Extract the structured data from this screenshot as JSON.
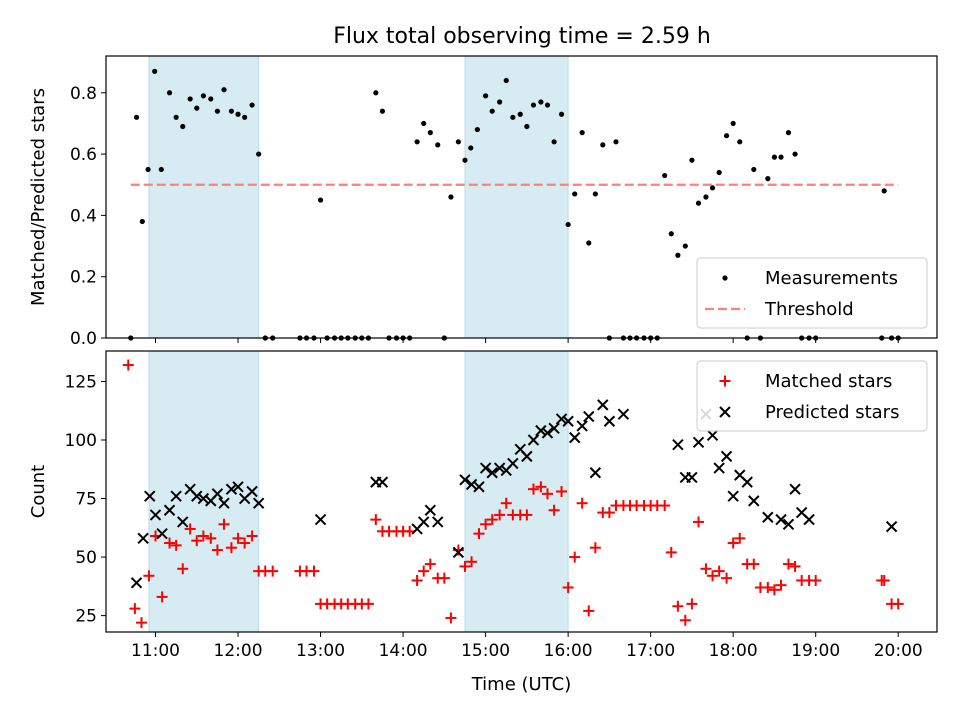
{
  "figure": {
    "title": "Flux total observing time = 2.59 h"
  },
  "colors": {
    "highlight": "#add8e6",
    "threshold": "#ff7f7f",
    "matched": "#ff0000",
    "predicted": "#000000",
    "measurement": "#000000"
  },
  "chart_data": [
    {
      "type": "scatter",
      "title": "Flux total observing time = 2.59 h",
      "xlabel": "",
      "ylabel": "Matched/Predicted stars",
      "xlim": [
        10.4,
        20.47
      ],
      "ylim": [
        0,
        0.92
      ],
      "yticks": [
        0.0,
        0.2,
        0.4,
        0.6,
        0.8
      ],
      "ytick_labels": [
        "0.0",
        "0.2",
        "0.4",
        "0.6",
        "0.8"
      ],
      "xticks": [
        11,
        12,
        13,
        14,
        15,
        16,
        17,
        18,
        19,
        20
      ],
      "highlight_spans": [
        [
          10.92,
          12.25
        ],
        [
          14.75,
          16.0
        ]
      ],
      "threshold": 0.5,
      "threshold_x": [
        10.7,
        20.0
      ],
      "legend": {
        "position": "lower right",
        "entries": [
          "Measurements",
          "Threshold"
        ]
      },
      "series": [
        {
          "name": "Measurements",
          "x": [
            10.7,
            10.77,
            10.84,
            10.91,
            10.99,
            11.07,
            11.17,
            11.25,
            11.33,
            11.42,
            11.5,
            11.58,
            11.67,
            11.75,
            11.83,
            11.92,
            12.0,
            12.08,
            12.17,
            12.25,
            12.33,
            12.42,
            12.75,
            12.83,
            12.92,
            13.0,
            13.08,
            13.17,
            13.25,
            13.33,
            13.42,
            13.5,
            13.58,
            13.67,
            13.75,
            13.83,
            13.92,
            14.0,
            14.08,
            14.17,
            14.25,
            14.33,
            14.42,
            14.5,
            14.58,
            14.67,
            14.75,
            14.82,
            14.9,
            15.0,
            15.08,
            15.17,
            15.25,
            15.33,
            15.42,
            15.5,
            15.58,
            15.67,
            15.75,
            15.83,
            15.92,
            16.0,
            16.08,
            16.17,
            16.25,
            16.33,
            16.42,
            16.5,
            16.58,
            16.67,
            16.75,
            16.83,
            16.92,
            17.0,
            17.08,
            17.17,
            17.25,
            17.33,
            17.42,
            17.5,
            17.58,
            17.67,
            17.75,
            17.83,
            17.92,
            18.0,
            18.08,
            18.17,
            18.25,
            18.33,
            18.42,
            18.5,
            18.58,
            18.67,
            18.75,
            18.83,
            18.92,
            19.0,
            19.8,
            19.83,
            19.92,
            20.0
          ],
          "y": [
            0.0,
            0.72,
            0.38,
            0.55,
            0.87,
            0.55,
            0.8,
            0.72,
            0.69,
            0.78,
            0.75,
            0.79,
            0.78,
            0.74,
            0.81,
            0.74,
            0.73,
            0.72,
            0.76,
            0.6,
            0.0,
            0.0,
            0.0,
            0.0,
            0.0,
            0.45,
            0.0,
            0.0,
            0.0,
            0.0,
            0.0,
            0.0,
            0.0,
            0.8,
            0.74,
            0.0,
            0.0,
            0.0,
            0.0,
            0.64,
            0.7,
            0.67,
            0.63,
            0.0,
            0.46,
            0.64,
            0.58,
            0.62,
            0.68,
            0.79,
            0.74,
            0.77,
            0.84,
            0.72,
            0.73,
            0.69,
            0.76,
            0.77,
            0.76,
            0.64,
            0.73,
            0.37,
            0.47,
            0.67,
            0.31,
            0.47,
            0.63,
            0.0,
            0.64,
            0.0,
            0.0,
            0.0,
            0.0,
            0.0,
            0.0,
            0.53,
            0.34,
            0.27,
            0.3,
            0.58,
            0.44,
            0.46,
            0.49,
            0.54,
            0.66,
            0.7,
            0.64,
            0.0,
            0.55,
            0.0,
            0.52,
            0.59,
            0.59,
            0.67,
            0.6,
            0.0,
            0.0,
            0.0,
            0.0,
            0.48,
            0.0,
            0.0
          ]
        }
      ]
    },
    {
      "type": "scatter",
      "xlabel": "Time (UTC)",
      "ylabel": "Count",
      "xlim": [
        10.4,
        20.47
      ],
      "ylim": [
        18,
        138
      ],
      "yticks": [
        25,
        50,
        75,
        100,
        125
      ],
      "ytick_labels": [
        "25",
        "50",
        "75",
        "100",
        "125"
      ],
      "xticks": [
        11,
        12,
        13,
        14,
        15,
        16,
        17,
        18,
        19,
        20
      ],
      "xtick_labels": [
        "11:00",
        "12:00",
        "13:00",
        "14:00",
        "15:00",
        "16:00",
        "17:00",
        "18:00",
        "19:00",
        "20:00"
      ],
      "highlight_spans": [
        [
          10.92,
          12.25
        ],
        [
          14.75,
          16.0
        ]
      ],
      "legend": {
        "position": "upper right",
        "entries": [
          "Matched stars",
          "Predicted stars"
        ]
      },
      "series": [
        {
          "name": "Matched stars",
          "marker": "+",
          "x": [
            10.67,
            10.75,
            10.83,
            10.92,
            11.0,
            11.08,
            11.17,
            11.25,
            11.33,
            11.42,
            11.5,
            11.58,
            11.67,
            11.75,
            11.83,
            11.92,
            12.0,
            12.08,
            12.17,
            12.25,
            12.33,
            12.42,
            12.75,
            12.83,
            12.92,
            13.0,
            13.08,
            13.17,
            13.25,
            13.33,
            13.42,
            13.5,
            13.58,
            13.67,
            13.75,
            13.83,
            13.92,
            14.0,
            14.08,
            14.17,
            14.25,
            14.33,
            14.42,
            14.5,
            14.58,
            14.67,
            14.75,
            14.83,
            14.92,
            15.0,
            15.08,
            15.17,
            15.25,
            15.33,
            15.42,
            15.5,
            15.58,
            15.67,
            15.75,
            15.83,
            15.92,
            16.0,
            16.08,
            16.17,
            16.25,
            16.33,
            16.42,
            16.5,
            16.58,
            16.67,
            16.75,
            16.83,
            16.92,
            17.0,
            17.08,
            17.17,
            17.25,
            17.33,
            17.42,
            17.5,
            17.58,
            17.67,
            17.75,
            17.83,
            17.92,
            18.0,
            18.08,
            18.17,
            18.25,
            18.33,
            18.42,
            18.5,
            18.58,
            18.67,
            18.75,
            18.83,
            18.92,
            19.0,
            19.8,
            19.83,
            19.92,
            20.0
          ],
          "y": [
            132,
            28,
            22,
            42,
            59,
            33,
            56,
            55,
            45,
            62,
            57,
            59,
            58,
            53,
            64,
            54,
            58,
            56,
            59,
            44,
            44,
            44,
            44,
            44,
            44,
            30,
            30,
            30,
            30,
            30,
            30,
            30,
            30,
            66,
            61,
            61,
            61,
            61,
            61,
            40,
            44,
            47,
            41,
            41,
            24,
            53,
            46,
            48,
            60,
            64,
            66,
            68,
            73,
            68,
            68,
            68,
            79,
            80,
            77,
            70,
            78,
            37,
            50,
            73,
            27,
            54,
            69,
            69,
            72,
            72,
            72,
            72,
            72,
            72,
            72,
            72,
            52,
            29,
            23,
            30,
            65,
            45,
            42,
            44,
            41,
            56,
            58,
            47,
            47,
            37,
            37,
            36,
            38,
            47,
            46,
            40,
            40,
            40,
            40,
            40,
            30,
            30
          ]
        },
        {
          "name": "Predicted stars",
          "marker": "x",
          "x": [
            10.77,
            10.85,
            10.93,
            11.0,
            11.08,
            11.17,
            11.25,
            11.33,
            11.42,
            11.5,
            11.58,
            11.67,
            11.75,
            11.83,
            11.92,
            12.0,
            12.08,
            12.17,
            12.25,
            13.0,
            13.67,
            13.75,
            14.17,
            14.25,
            14.33,
            14.42,
            14.67,
            14.75,
            14.83,
            14.92,
            15.0,
            15.08,
            15.17,
            15.25,
            15.33,
            15.42,
            15.5,
            15.58,
            15.67,
            15.75,
            15.83,
            15.92,
            16.0,
            16.08,
            16.17,
            16.25,
            16.33,
            16.42,
            16.5,
            16.67,
            17.33,
            17.42,
            17.5,
            17.58,
            17.67,
            17.75,
            17.83,
            17.92,
            18.0,
            18.08,
            18.17,
            18.25,
            18.42,
            18.58,
            18.67,
            18.75,
            18.83,
            18.92,
            19.92
          ],
          "y": [
            39,
            58,
            76,
            68,
            60,
            70,
            76,
            65,
            79,
            76,
            75,
            74,
            77,
            73,
            79,
            80,
            75,
            78,
            73,
            66,
            82,
            82,
            62,
            65,
            70,
            65,
            52,
            83,
            81,
            80,
            88,
            86,
            88,
            87,
            90,
            96,
            93,
            100,
            104,
            103,
            105,
            109,
            108,
            101,
            106,
            110,
            86,
            115,
            108,
            111,
            98,
            84,
            84,
            99,
            111,
            102,
            88,
            93,
            76,
            85,
            82,
            74,
            67,
            66,
            64,
            79,
            69,
            66,
            63
          ]
        }
      ]
    }
  ]
}
